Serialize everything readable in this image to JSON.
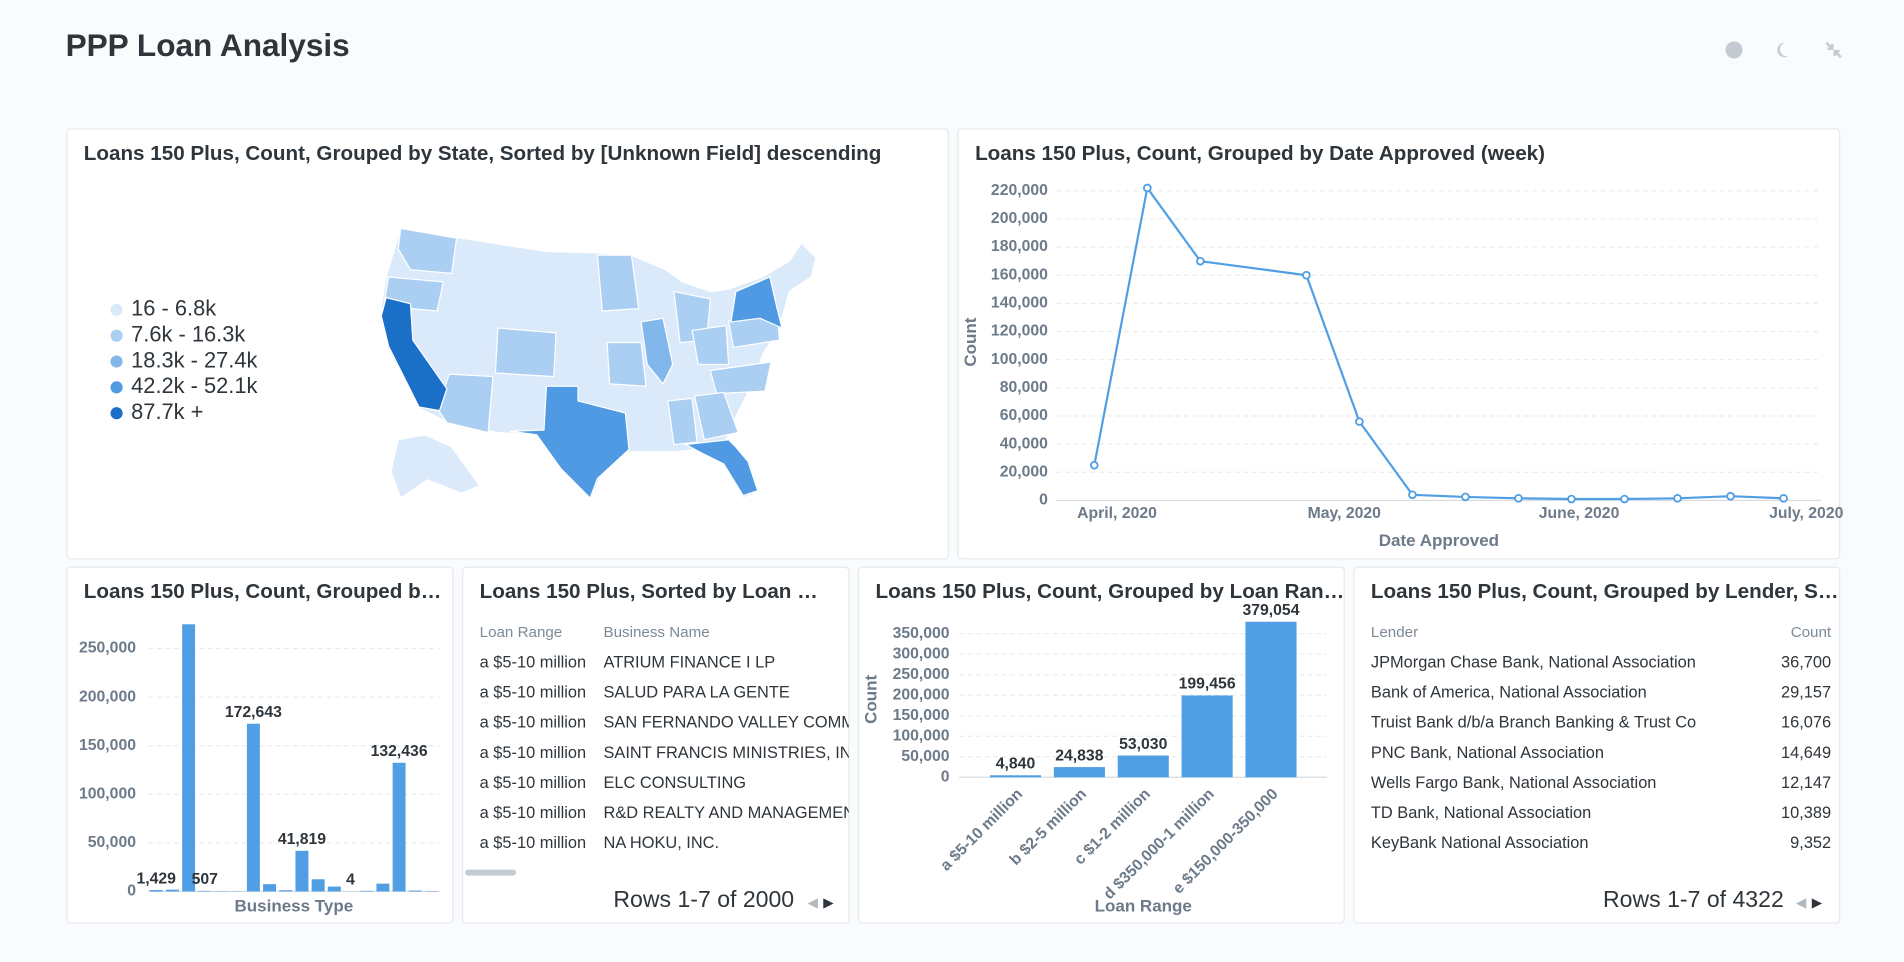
{
  "title": "PPP Loan Analysis",
  "chart_data": [
    {
      "type": "map",
      "title": "Loans 150 Plus, Count, Grouped by State, Sorted by [Unknown Field] descending",
      "legend": [
        {
          "label": "16 - 6.8k",
          "color": "#dbeafa"
        },
        {
          "label": "7.6k - 16.3k",
          "color": "#abcff3"
        },
        {
          "label": "18.3k - 27.4k",
          "color": "#82b7eb"
        },
        {
          "label": "42.2k - 52.1k",
          "color": "#4f9ae3"
        },
        {
          "label": "87.7k +",
          "color": "#1a6fc7"
        }
      ]
    },
    {
      "type": "line",
      "title": "Loans 150 Plus, Count, Grouped by Date Approved (week)",
      "x": [
        "2020-03-29",
        "2020-04-05",
        "2020-04-12",
        "2020-04-26",
        "2020-05-03",
        "2020-05-10",
        "2020-05-17",
        "2020-05-24",
        "2020-05-31",
        "2020-06-07",
        "2020-06-14",
        "2020-06-21",
        "2020-06-28"
      ],
      "values": [
        25000,
        222000,
        170000,
        160000,
        56000,
        4000,
        2500,
        1500,
        1000,
        1000,
        1500,
        3000,
        1500
      ],
      "color": "#509ee3",
      "xlim": [
        "2020-03-24",
        "2020-07-03"
      ],
      "xticks": [
        {
          "value": "2020-04-01",
          "label": "April, 2020"
        },
        {
          "value": "2020-05-01",
          "label": "May, 2020"
        },
        {
          "value": "2020-06-01",
          "label": "June, 2020"
        },
        {
          "value": "2020-07-01",
          "label": "July, 2020"
        }
      ],
      "ylim": [
        0,
        225000
      ],
      "yticks": [
        0,
        {
          "value": 20000,
          "label": "20,000"
        },
        {
          "value": 40000,
          "label": "40,000"
        },
        {
          "value": 60000,
          "label": "60,000"
        },
        {
          "value": 80000,
          "label": "80,000"
        },
        {
          "value": 100000,
          "label": "100,000"
        },
        {
          "value": 120000,
          "label": "120,000"
        },
        {
          "value": 140000,
          "label": "140,000"
        },
        {
          "value": 160000,
          "label": "160,000"
        },
        {
          "value": 180000,
          "label": "180,000"
        },
        {
          "value": 200000,
          "label": "200,000"
        },
        {
          "value": 220000,
          "label": "220,000"
        }
      ],
      "xlabel": "Date Approved",
      "ylabel": "Count",
      "grid": true
    },
    {
      "type": "bar",
      "title": "Loans 150 Plus, Count, Grouped b…",
      "categories": [
        null,
        null,
        null,
        null,
        null,
        null,
        null,
        null,
        null,
        null,
        null,
        null,
        null,
        null,
        null,
        null,
        null,
        null
      ],
      "values": [
        1429,
        1800,
        275000,
        507,
        300,
        200,
        172643,
        7500,
        1200,
        41819,
        12500,
        5000,
        4,
        600,
        8000,
        132436,
        900,
        400
      ],
      "value_labels": [
        "1,429",
        null,
        null,
        "507",
        null,
        null,
        "172,643",
        null,
        null,
        "41,819",
        null,
        null,
        "4",
        null,
        null,
        "132,436",
        null,
        null
      ],
      "color": "#509ee3",
      "ylim": [
        0,
        275000
      ],
      "yticks": [
        0,
        {
          "value": 50000,
          "label": "50,000"
        },
        {
          "value": 100000,
          "label": "100,000"
        },
        {
          "value": 150000,
          "label": "150,000"
        },
        {
          "value": 200000,
          "label": "200,000"
        },
        {
          "value": 250000,
          "label": "250,000"
        }
      ],
      "xlabel": "Business Type",
      "grid": true
    },
    {
      "type": "bar",
      "title": "Loans 150 Plus, Count, Grouped by Loan Ran…",
      "categories": [
        "a $5-10 million",
        "b $2-5 million",
        "c $1-2 million",
        "d $350,000-1 million",
        "e $150,000-350,000"
      ],
      "values": [
        4840,
        24838,
        53030,
        199456,
        379054
      ],
      "value_labels": [
        "4,840",
        "24,838",
        "53,030",
        "199,456",
        "379,054"
      ],
      "color": "#509ee3",
      "ylim": [
        0,
        380000
      ],
      "yticks": [
        0,
        {
          "value": 50000,
          "label": "50,000"
        },
        {
          "value": 100000,
          "label": "100,000"
        },
        {
          "value": 150000,
          "label": "150,000"
        },
        {
          "value": 200000,
          "label": "200,000"
        },
        {
          "value": 250000,
          "label": "250,000"
        },
        {
          "value": 300000,
          "label": "300,000"
        },
        {
          "value": 350000,
          "label": "350,000"
        }
      ],
      "xlabel": "Loan Range",
      "ylabel": "Count",
      "grid": true,
      "rotate_labels": true
    }
  ],
  "tables": [
    {
      "title": "Loans 150 Plus, Sorted by Loan …",
      "columns": [
        "Loan Range",
        "Business Name"
      ],
      "rows": [
        [
          "a $5-10 million",
          "ATRIUM FINANCE I LP"
        ],
        [
          "a $5-10 million",
          "SALUD PARA LA GENTE"
        ],
        [
          "a $5-10 million",
          "SAN FERNANDO VALLEY COMMU"
        ],
        [
          "a $5-10 million",
          "SAINT FRANCIS MINISTRIES, INC."
        ],
        [
          "a $5-10 million",
          "ELC CONSULTING"
        ],
        [
          "a $5-10 million",
          "R&D REALTY AND MANAGEMENT"
        ],
        [
          "a $5-10 million",
          "NA HOKU, INC."
        ]
      ],
      "footer": "Rows 1-7 of 2000"
    },
    {
      "title": "Loans 150 Plus, Count, Grouped by Lender, S…",
      "columns": [
        "Lender",
        "Count"
      ],
      "rows": [
        [
          "JPMorgan Chase Bank, National Association",
          "36,700"
        ],
        [
          "Bank of America, National Association",
          "29,157"
        ],
        [
          "Truist Bank d/b/a Branch Banking & Trust Co",
          "16,076"
        ],
        [
          "PNC Bank, National Association",
          "14,649"
        ],
        [
          "Wells Fargo Bank, National Association",
          "12,147"
        ],
        [
          "TD Bank, National Association",
          "10,389"
        ],
        [
          "KeyBank National Association",
          "9,352"
        ]
      ],
      "footer": "Rows 1-7 of 4322"
    }
  ]
}
